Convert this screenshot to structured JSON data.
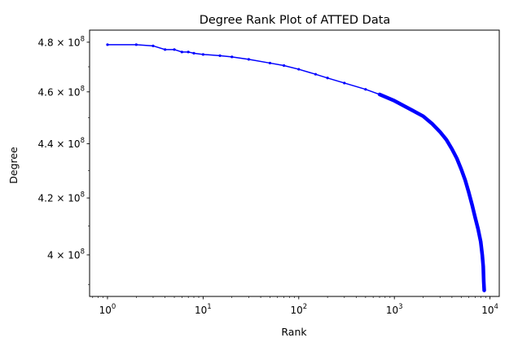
{
  "chart_data": {
    "type": "line",
    "title": "Degree Rank Plot of ATTED Data",
    "xlabel": "Rank",
    "ylabel": "Degree",
    "xscale": "log",
    "yscale": "log",
    "xlim": [
      0.65,
      12500
    ],
    "ylim": [
      386000000,
      485000000
    ],
    "grid": false,
    "legend": "none",
    "line_color": "#0000ff",
    "marker": "dot",
    "x_ticks": [
      {
        "value": 1,
        "base": "10",
        "exp": "0"
      },
      {
        "value": 10,
        "base": "10",
        "exp": "1"
      },
      {
        "value": 100,
        "base": "10",
        "exp": "2"
      },
      {
        "value": 1000,
        "base": "10",
        "exp": "3"
      },
      {
        "value": 10000,
        "base": "10",
        "exp": "4"
      }
    ],
    "y_ticks": [
      {
        "value": 400000000,
        "mant": "4 × ",
        "base": "10",
        "exp": "8"
      },
      {
        "value": 420000000,
        "mant": "4.2 × ",
        "base": "10",
        "exp": "8"
      },
      {
        "value": 440000000,
        "mant": "4.4 × ",
        "base": "10",
        "exp": "8"
      },
      {
        "value": 460000000,
        "mant": "4.6 × ",
        "base": "10",
        "exp": "8"
      },
      {
        "value": 480000000,
        "mant": "4.8 × ",
        "base": "10",
        "exp": "8"
      }
    ],
    "series": [
      {
        "x": [
          1,
          2,
          3,
          4,
          5,
          6,
          7,
          8,
          10,
          15,
          20,
          30,
          50,
          70,
          100,
          150,
          200,
          300,
          500,
          700,
          1000,
          1500,
          2000,
          2500,
          3000,
          3500,
          4000,
          4500,
          5000,
          5500,
          6000,
          6500,
          7000,
          7500,
          8000,
          8300,
          8500,
          8600,
          8700
        ],
        "y": [
          479000000,
          479000000,
          478500000,
          477000000,
          477000000,
          476000000,
          476000000,
          475500000,
          475000000,
          474500000,
          474000000,
          473000000,
          471500000,
          470500000,
          469000000,
          467000000,
          465500000,
          463500000,
          461000000,
          459000000,
          456500000,
          453000000,
          450500000,
          447500000,
          444500000,
          441500000,
          438000000,
          434500000,
          430500000,
          426500000,
          422000000,
          417500000,
          413000000,
          409000000,
          404500000,
          400000000,
          396000000,
          391000000,
          388000000
        ]
      }
    ]
  }
}
